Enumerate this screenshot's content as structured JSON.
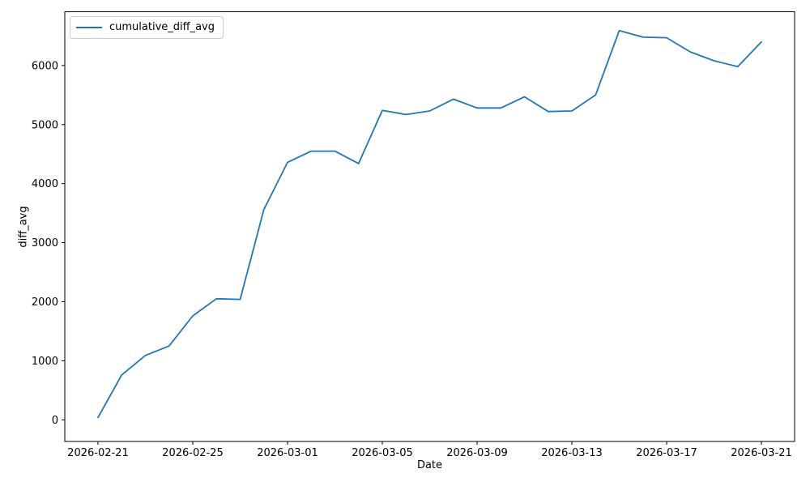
{
  "chart_data": {
    "type": "line",
    "title": "",
    "xlabel": "Date",
    "ylabel": "diff_avg",
    "grid": false,
    "legend_position": "upper left",
    "line_color": "#1f77b4",
    "x": [
      "2026-02-21",
      "2026-02-22",
      "2026-02-23",
      "2026-02-24",
      "2026-02-25",
      "2026-02-26",
      "2026-02-27",
      "2026-02-28",
      "2026-03-01",
      "2026-03-02",
      "2026-03-03",
      "2026-03-04",
      "2026-03-05",
      "2026-03-06",
      "2026-03-07",
      "2026-03-08",
      "2026-03-09",
      "2026-03-10",
      "2026-03-11",
      "2026-03-12",
      "2026-03-13",
      "2026-03-14",
      "2026-03-15",
      "2026-03-16",
      "2026-03-17",
      "2026-03-18",
      "2026-03-19",
      "2026-03-20",
      "2026-03-21"
    ],
    "series": [
      {
        "name": "cumulative_diff_avg",
        "color": "#1f77b4",
        "values": [
          40,
          760,
          1090,
          1250,
          1760,
          2050,
          2040,
          3560,
          4360,
          4550,
          4550,
          4340,
          5240,
          5170,
          5230,
          5430,
          5280,
          5280,
          5470,
          5220,
          5230,
          5500,
          6590,
          6480,
          6470,
          6230,
          6080,
          5980,
          6400
        ]
      }
    ],
    "x_tick_indices": [
      0,
      4,
      8,
      12,
      16,
      20,
      24,
      28
    ],
    "x_tick_labels": [
      "2026-02-21",
      "2026-02-25",
      "2026-03-01",
      "2026-03-05",
      "2026-03-09",
      "2026-03-13",
      "2026-03-17",
      "2026-03-21"
    ],
    "y_ticks": [
      0,
      1000,
      2000,
      3000,
      4000,
      5000,
      6000
    ],
    "xlim_days": [
      -1.4,
      29.4
    ],
    "ylim": [
      -366,
      6910
    ]
  },
  "legend": {
    "label": "cumulative_diff_avg"
  },
  "axes": {
    "xlabel": "Date",
    "ylabel": "diff_avg"
  }
}
